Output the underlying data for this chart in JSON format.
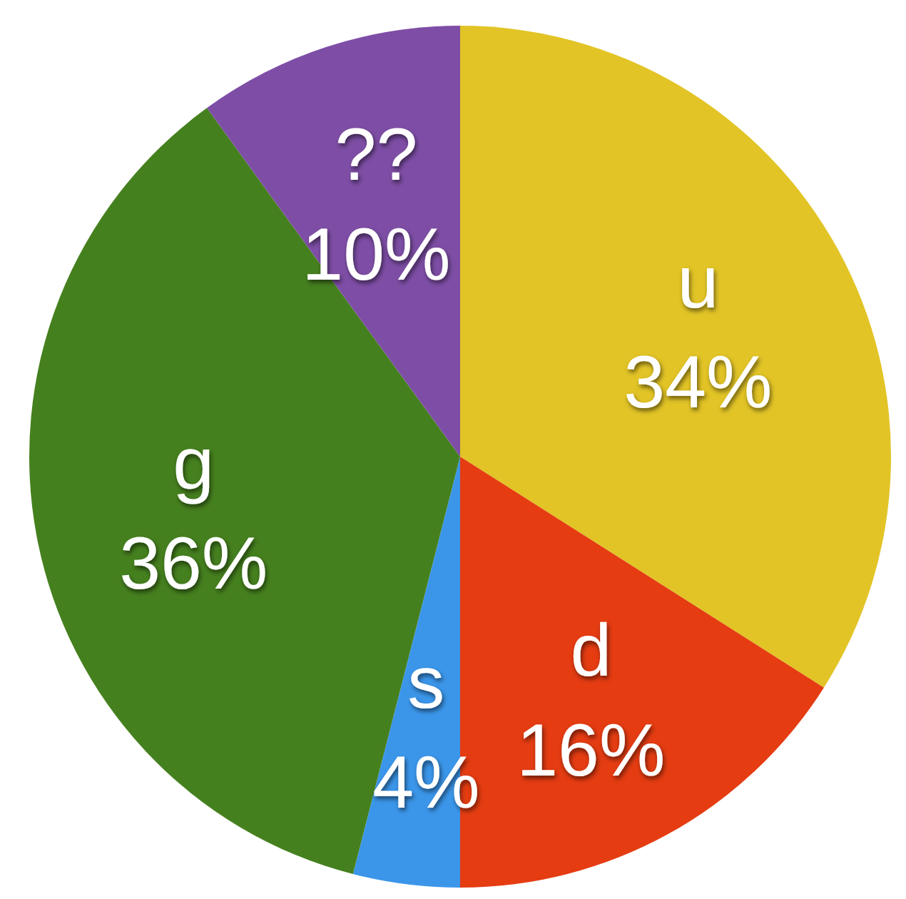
{
  "chart_data": {
    "type": "pie",
    "categories": [
      "u",
      "d",
      "s",
      "g",
      "??"
    ],
    "values": [
      34,
      16,
      4,
      36,
      10
    ],
    "value_labels": [
      "34%",
      "16%",
      "4%",
      "36%",
      "10%"
    ],
    "colors": [
      "#e2c426",
      "#e53c12",
      "#3b96ea",
      "#45801e",
      "#7e4ea6"
    ]
  }
}
